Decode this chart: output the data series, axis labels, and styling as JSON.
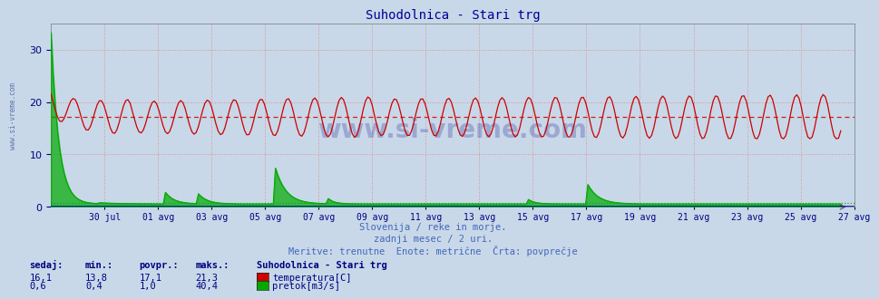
{
  "title": "Suhodolnica - Stari trg",
  "title_color": "#000099",
  "title_fontsize": 10,
  "background_color": "#c8d8e8",
  "plot_bg_color": "#c8d8e8",
  "grid_color": "#dd8888",
  "y_min": 0,
  "y_max": 35,
  "y_ticks": [
    0,
    10,
    20,
    30
  ],
  "temp_color": "#cc0000",
  "flow_color": "#00aa00",
  "avg_temp_value": 17.1,
  "avg_flow_scaled": 0.5,
  "subtitle1": "Slovenija / reke in morje.",
  "subtitle2": "zadnji mesec / 2 uri.",
  "subtitle3": "Meritve: trenutne  Enote: metrične  Črta: povprečje",
  "subtitle_color": "#4466bb",
  "label_color": "#000080",
  "legend_title": "Suhodolnica - Stari trg",
  "legend_temp": "temperatura[C]",
  "legend_flow": "pretok[m3/s]",
  "watermark": "www.si-vreme.com",
  "watermark_color": "#000080",
  "left_label": "www.si-vreme.com",
  "x_labels": [
    "30 jul",
    "01 avg",
    "03 avg",
    "05 avg",
    "07 avg",
    "09 avg",
    "11 avg",
    "13 avg",
    "15 avg",
    "17 avg",
    "19 avg",
    "21 avg",
    "23 avg",
    "25 avg",
    "27 avg"
  ],
  "n_points": 360,
  "days": 29.5,
  "temp_sedaj": "16,1",
  "temp_min": "13,8",
  "temp_povpr": "17,1",
  "temp_maks": "21,3",
  "flow_sedaj": "0,6",
  "flow_min": "0,4",
  "flow_povpr": "1,0",
  "flow_maks": "40,4"
}
